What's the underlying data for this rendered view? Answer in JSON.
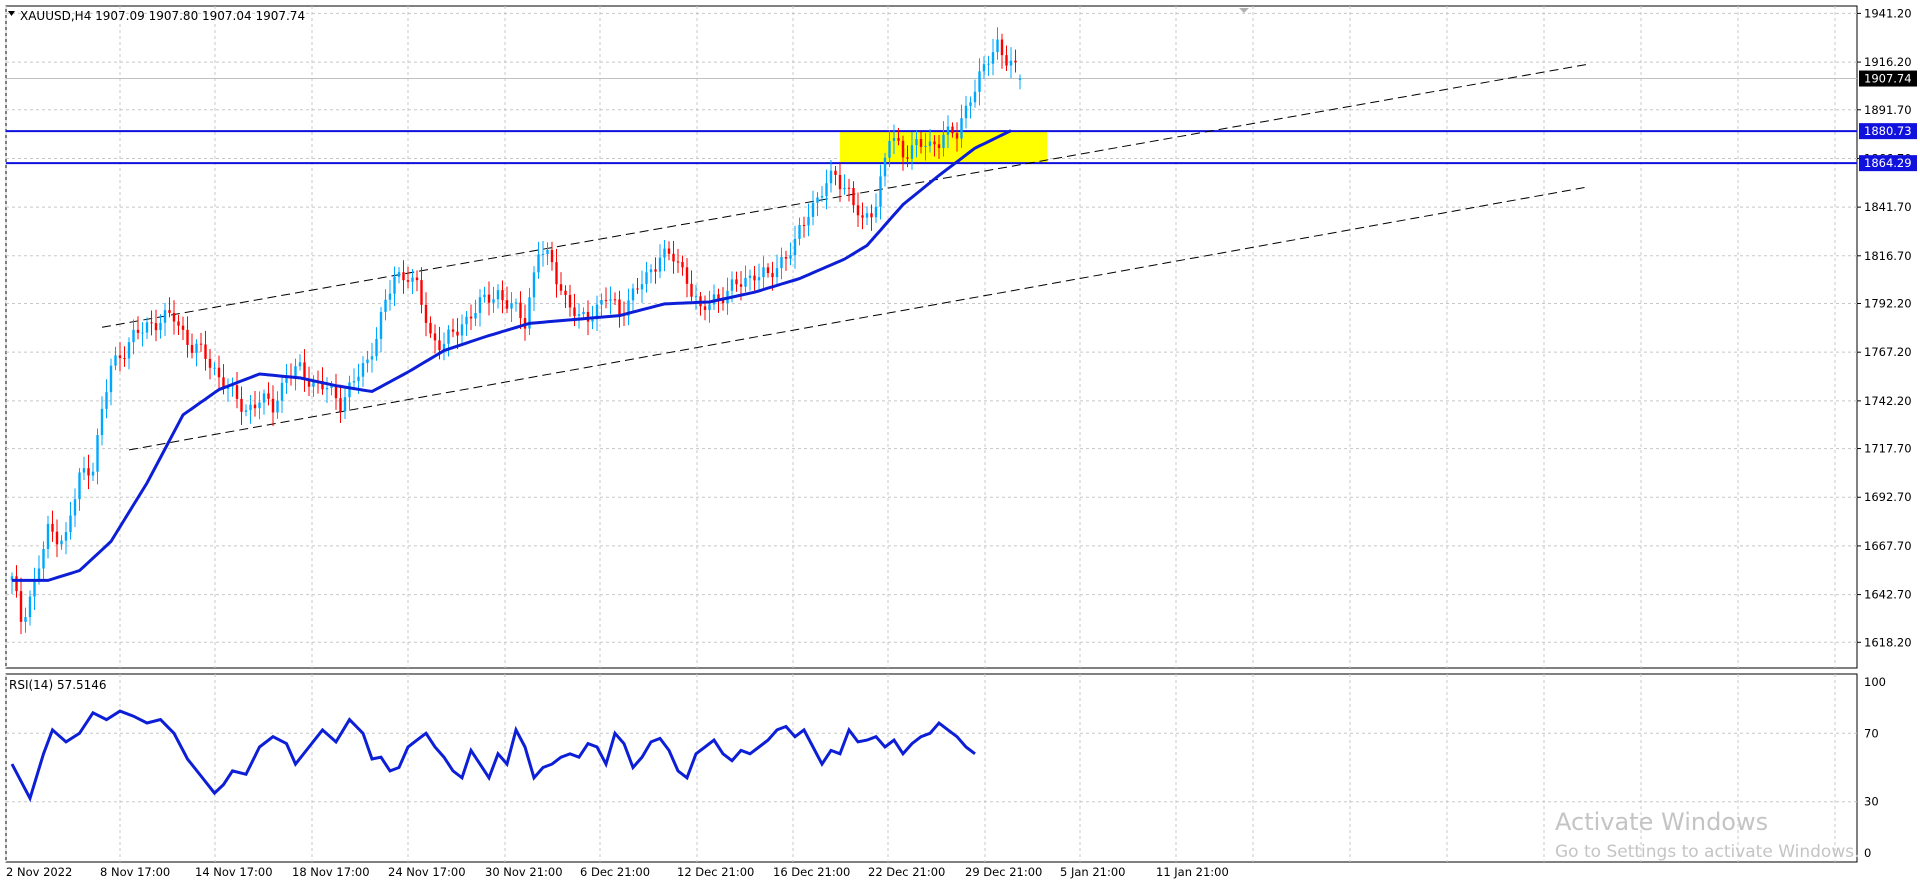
{
  "main_chart": {
    "symbol_line": "XAUUSD,H4  1907.09 1907.80 1907.04 1907.74",
    "current_price_label": "1907.74",
    "hline_labels": [
      "1880.73",
      "1864.29"
    ],
    "colors": {
      "candle": "#ff0000",
      "candle_up": "#00a7ff",
      "ma": "#0d1fd6",
      "hline": "#1111dd",
      "zone": "#ffff00",
      "channel": "#000000"
    }
  },
  "rsi_panel": {
    "label": "RSI(14) 57.5146"
  },
  "watermark": {
    "line1": "Activate Windows",
    "line2": "Go to Settings to activate Windows."
  },
  "chart_data": [
    {
      "type": "candlestick",
      "title": "XAUUSD,H4",
      "ohlc_last": {
        "open": 1907.09,
        "high": 1907.8,
        "low": 1907.04,
        "close": 1907.74
      },
      "ylim": [
        1605,
        1945
      ],
      "yticks": [
        "1941.20",
        "1916.20",
        "1891.70",
        "1866.70",
        "1841.70",
        "1816.70",
        "1792.20",
        "1767.20",
        "1742.20",
        "1717.70",
        "1692.70",
        "1667.70",
        "1642.70",
        "1618.20"
      ],
      "xticks": [
        "2 Nov 2022",
        "8 Nov 17:00",
        "14 Nov 17:00",
        "18 Nov 17:00",
        "24 Nov 17:00",
        "30 Nov 21:00",
        "6 Dec 21:00",
        "12 Dec 21:00",
        "16 Dec 21:00",
        "22 Dec 21:00",
        "29 Dec 21:00",
        "5 Jan 21:00",
        "11 Jan 21:00"
      ],
      "horizontal_lines": [
        1880.73,
        1864.29
      ],
      "highlight_zone": [
        1864.29,
        1880.73
      ],
      "close_path": [
        [
          0,
          1650
        ],
        [
          2,
          1630
        ],
        [
          5,
          1648
        ],
        [
          8,
          1675
        ],
        [
          12,
          1672
        ],
        [
          15,
          1703
        ],
        [
          18,
          1710
        ],
        [
          22,
          1760
        ],
        [
          26,
          1772
        ],
        [
          30,
          1781
        ],
        [
          33,
          1784
        ],
        [
          36,
          1785
        ],
        [
          40,
          1770
        ],
        [
          43,
          1765
        ],
        [
          46,
          1755
        ],
        [
          49,
          1745
        ],
        [
          52,
          1738
        ],
        [
          55,
          1742
        ],
        [
          58,
          1740
        ],
        [
          61,
          1755
        ],
        [
          64,
          1758
        ],
        [
          67,
          1752
        ],
        [
          70,
          1748
        ],
        [
          73,
          1742
        ],
        [
          76,
          1752
        ],
        [
          79,
          1762
        ],
        [
          82,
          1785
        ],
        [
          85,
          1805
        ],
        [
          88,
          1808
        ],
        [
          90,
          1800
        ],
        [
          93,
          1775
        ],
        [
          96,
          1772
        ],
        [
          99,
          1778
        ],
        [
          102,
          1788
        ],
        [
          105,
          1793
        ],
        [
          108,
          1798
        ],
        [
          111,
          1790
        ],
        [
          114,
          1783
        ],
        [
          117,
          1820
        ],
        [
          120,
          1812
        ],
        [
          123,
          1795
        ],
        [
          126,
          1783
        ],
        [
          129,
          1788
        ],
        [
          132,
          1795
        ],
        [
          135,
          1788
        ],
        [
          138,
          1797
        ],
        [
          141,
          1805
        ],
        [
          144,
          1818
        ],
        [
          147,
          1815
        ],
        [
          150,
          1806
        ],
        [
          153,
          1787
        ],
        [
          156,
          1795
        ],
        [
          159,
          1798
        ],
        [
          162,
          1803
        ],
        [
          165,
          1808
        ],
        [
          168,
          1805
        ],
        [
          171,
          1815
        ],
        [
          174,
          1822
        ],
        [
          177,
          1840
        ],
        [
          180,
          1850
        ],
        [
          183,
          1858
        ],
        [
          186,
          1850
        ],
        [
          189,
          1832
        ],
        [
          192,
          1845
        ],
        [
          195,
          1877
        ],
        [
          198,
          1870
        ],
        [
          201,
          1874
        ],
        [
          204,
          1872
        ],
        [
          207,
          1880
        ],
        [
          210,
          1878
        ],
        [
          213,
          1900
        ],
        [
          216,
          1912
        ],
        [
          219,
          1926
        ],
        [
          222,
          1915
        ],
        [
          224,
          1907.74
        ]
      ],
      "ma_path": [
        [
          0,
          1650
        ],
        [
          8,
          1650
        ],
        [
          15,
          1655
        ],
        [
          22,
          1670
        ],
        [
          30,
          1700
        ],
        [
          38,
          1735
        ],
        [
          46,
          1748
        ],
        [
          55,
          1756
        ],
        [
          64,
          1754
        ],
        [
          72,
          1750
        ],
        [
          80,
          1747
        ],
        [
          88,
          1757
        ],
        [
          96,
          1768
        ],
        [
          105,
          1775
        ],
        [
          115,
          1782
        ],
        [
          125,
          1784
        ],
        [
          135,
          1786
        ],
        [
          145,
          1792
        ],
        [
          155,
          1793
        ],
        [
          165,
          1798
        ],
        [
          175,
          1805
        ],
        [
          185,
          1815
        ],
        [
          190,
          1822
        ],
        [
          198,
          1843
        ],
        [
          206,
          1858
        ],
        [
          214,
          1872
        ],
        [
          222,
          1881
        ]
      ],
      "channel_lines": [
        {
          "from": [
            20,
            1780
          ],
          "to": [
            350,
            1915
          ]
        },
        {
          "from": [
            26,
            1717
          ],
          "to": [
            350,
            1852
          ]
        }
      ]
    },
    {
      "type": "line",
      "title": "RSI(14) 57.5146",
      "ylim": [
        0,
        100
      ],
      "yticks": [
        "100",
        "70",
        "30",
        "0"
      ],
      "series": [
        {
          "name": "RSI(14)",
          "points": [
            [
              0,
              52
            ],
            [
              2,
              42
            ],
            [
              4,
              32
            ],
            [
              7,
              58
            ],
            [
              9,
              72
            ],
            [
              12,
              65
            ],
            [
              15,
              70
            ],
            [
              18,
              82
            ],
            [
              21,
              78
            ],
            [
              24,
              83
            ],
            [
              27,
              80
            ],
            [
              30,
              76
            ],
            [
              33,
              78
            ],
            [
              36,
              70
            ],
            [
              39,
              55
            ],
            [
              42,
              45
            ],
            [
              45,
              35
            ],
            [
              47,
              40
            ],
            [
              49,
              48
            ],
            [
              52,
              46
            ],
            [
              55,
              62
            ],
            [
              58,
              68
            ],
            [
              61,
              64
            ],
            [
              63,
              52
            ],
            [
              66,
              62
            ],
            [
              69,
              72
            ],
            [
              72,
              65
            ],
            [
              75,
              78
            ],
            [
              78,
              70
            ],
            [
              80,
              55
            ],
            [
              82,
              56
            ],
            [
              84,
              48
            ],
            [
              86,
              50
            ],
            [
              88,
              62
            ],
            [
              90,
              66
            ],
            [
              92,
              70
            ],
            [
              94,
              62
            ],
            [
              96,
              56
            ],
            [
              98,
              48
            ],
            [
              100,
              44
            ],
            [
              102,
              60
            ],
            [
              104,
              52
            ],
            [
              106,
              44
            ],
            [
              108,
              58
            ],
            [
              110,
              52
            ],
            [
              112,
              72
            ],
            [
              114,
              62
            ],
            [
              116,
              44
            ],
            [
              118,
              50
            ],
            [
              120,
              52
            ],
            [
              122,
              56
            ],
            [
              124,
              58
            ],
            [
              126,
              56
            ],
            [
              128,
              64
            ],
            [
              130,
              62
            ],
            [
              132,
              52
            ],
            [
              134,
              70
            ],
            [
              136,
              64
            ],
            [
              138,
              50
            ],
            [
              140,
              56
            ],
            [
              142,
              65
            ],
            [
              144,
              67
            ],
            [
              146,
              60
            ],
            [
              148,
              48
            ],
            [
              150,
              44
            ],
            [
              152,
              58
            ],
            [
              154,
              62
            ],
            [
              156,
              66
            ],
            [
              158,
              58
            ],
            [
              160,
              54
            ],
            [
              162,
              60
            ],
            [
              164,
              58
            ],
            [
              166,
              62
            ],
            [
              168,
              66
            ],
            [
              170,
              72
            ],
            [
              172,
              74
            ],
            [
              174,
              68
            ],
            [
              176,
              72
            ],
            [
              178,
              62
            ],
            [
              180,
              52
            ],
            [
              182,
              60
            ],
            [
              184,
              58
            ],
            [
              186,
              72
            ],
            [
              188,
              65
            ],
            [
              190,
              66
            ],
            [
              192,
              68
            ],
            [
              194,
              62
            ],
            [
              196,
              66
            ],
            [
              198,
              58
            ],
            [
              200,
              64
            ],
            [
              202,
              68
            ],
            [
              204,
              70
            ],
            [
              206,
              76
            ],
            [
              208,
              72
            ],
            [
              210,
              68
            ],
            [
              212,
              62
            ],
            [
              214,
              58
            ]
          ]
        }
      ]
    }
  ]
}
